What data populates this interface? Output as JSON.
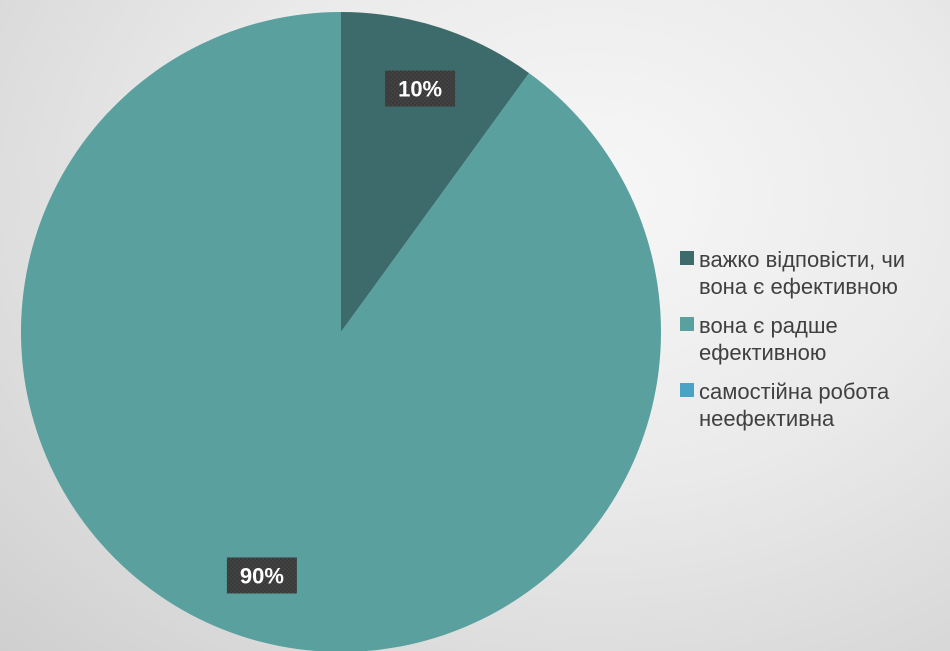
{
  "chart_data": {
    "type": "pie",
    "categories": [
      "важко відповісти, чи вона є ефективною",
      "вона є радше ефективною",
      "самостійна робота неефективна"
    ],
    "values": [
      10,
      90,
      0
    ],
    "data_labels": [
      "10%",
      "90%",
      ""
    ],
    "colors": [
      "#3d6b6b",
      "#59a09f",
      "#4aa3c4"
    ],
    "legend_position": "right",
    "start_angle": "12 o'clock, clockwise"
  }
}
